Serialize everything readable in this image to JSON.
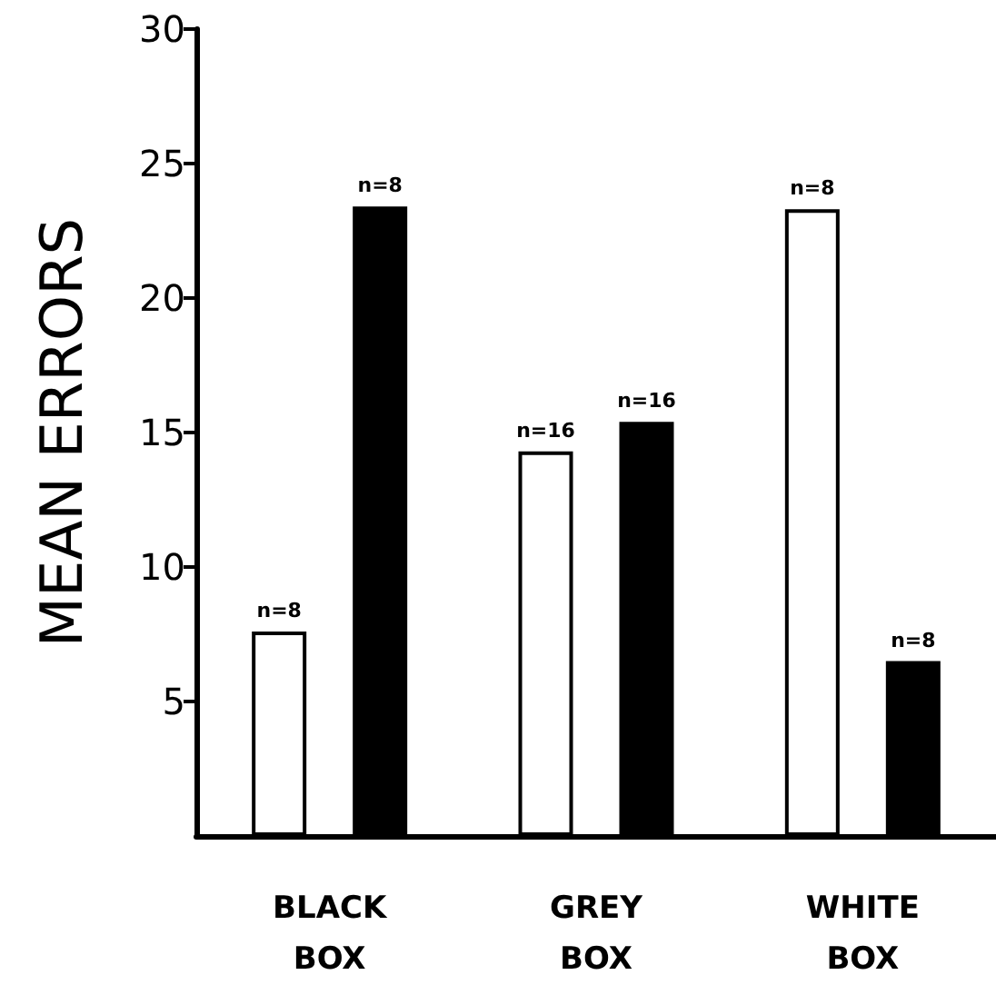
{
  "chart_data": {
    "type": "bar",
    "ylabel": "MEAN ERRORS",
    "categories": [
      "BLACK BOX",
      "GREY BOX",
      "WHITE BOX"
    ],
    "series": [
      {
        "color": "#ffffff",
        "values": [
          7.6,
          14.3,
          23.3
        ]
      },
      {
        "color": "#000000",
        "values": [
          23.4,
          15.4,
          6.5
        ]
      }
    ],
    "annotations": [
      "n=8",
      "n=16",
      "n=8",
      "n=8",
      "n=16",
      "n=8"
    ],
    "ylim": [
      0,
      30
    ],
    "yticks": [
      5,
      10,
      15,
      20,
      25,
      30
    ],
    "grid": false
  }
}
